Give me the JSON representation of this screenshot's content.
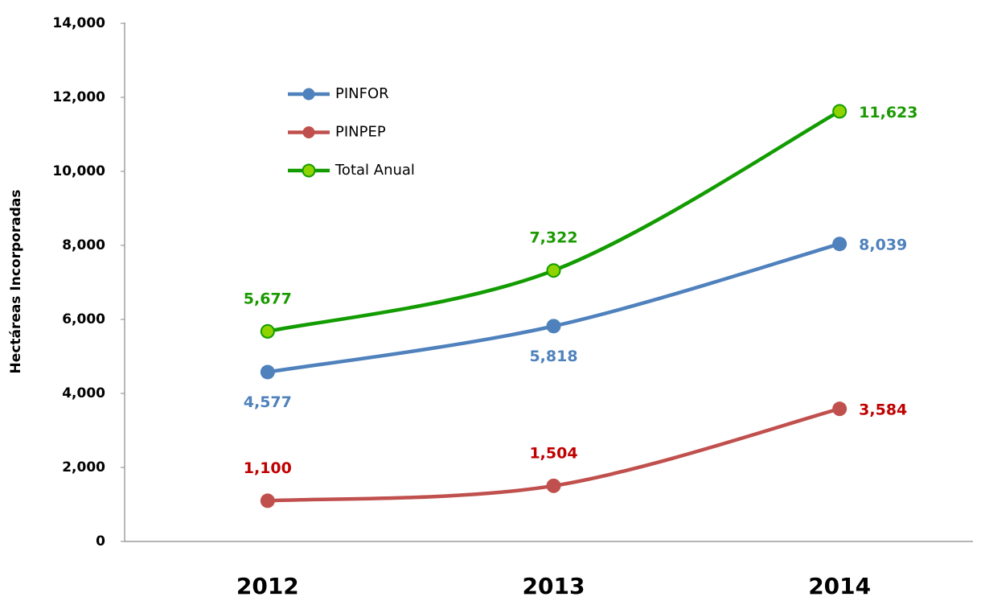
{
  "chart_data": {
    "type": "line",
    "y_label": "Hectáreas Incorporadas",
    "categories": [
      "2012",
      "2013",
      "2014"
    ],
    "series": [
      {
        "name": "PINFOR",
        "color": "#4f81bd",
        "label_color": "#4f81bd",
        "values": [
          4577,
          5818,
          8039
        ],
        "value_labels": [
          "4,577",
          "5,818",
          "8,039"
        ]
      },
      {
        "name": "PINPEP",
        "color": "#c0504d",
        "label_color": "#c00000",
        "values": [
          1100,
          1504,
          3584
        ],
        "value_labels": [
          "1,100",
          "1,504",
          "3,584"
        ]
      },
      {
        "name": "Total Anual",
        "color": "#129c00",
        "marker_fill": "#8fd400",
        "label_color": "#1a9a00",
        "values": [
          5677,
          7322,
          11623
        ],
        "value_labels": [
          "5,677",
          "7,322",
          "11,623"
        ]
      }
    ],
    "ylim": [
      0,
      14000
    ],
    "yticks": [
      0,
      {
        "value": 2000,
        "label": "2,000"
      },
      {
        "value": 4000,
        "label": "4,000"
      },
      {
        "value": 6000,
        "label": "6,000"
      },
      {
        "value": 8000,
        "label": "8,000"
      },
      {
        "value": 10000,
        "label": "10,000"
      },
      {
        "value": 12000,
        "label": "12,000"
      },
      {
        "value": 14000,
        "label": "14,000"
      }
    ],
    "grid": false,
    "legend": "upper left",
    "smooth": true
  }
}
